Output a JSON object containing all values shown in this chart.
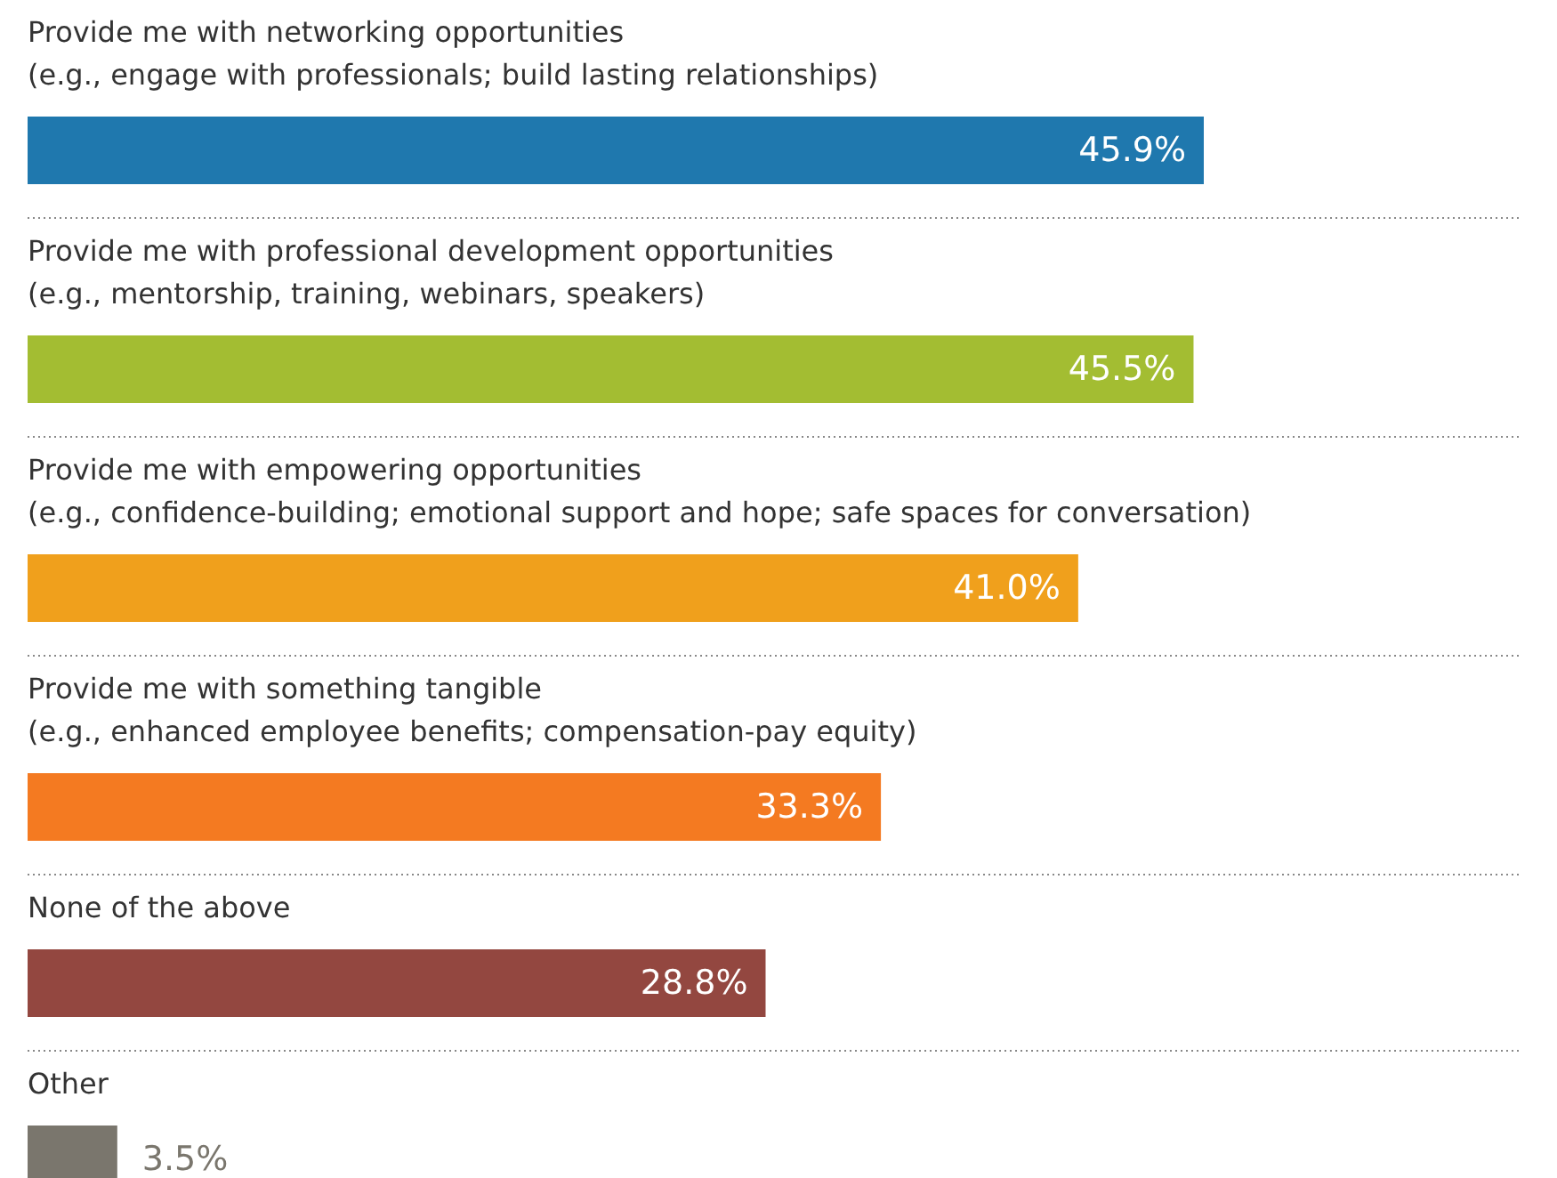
{
  "chart_data": {
    "type": "bar",
    "orientation": "horizontal",
    "categories": [
      "Provide me with networking opportunities\n(e.g., engage with professionals; build lasting relationships)",
      "Provide me with professional development opportunities\n(e.g., mentorship, training, webinars, speakers)",
      "Provide me with empowering opportunities\n(e.g., confidence-building; emotional support and hope; safe spaces for conversation)",
      "Provide me with something tangible\n(e.g., enhanced employee benefits; compensation-pay equity)",
      "None of the above",
      "Other"
    ],
    "values": [
      45.9,
      45.5,
      41.0,
      33.3,
      28.8,
      3.5
    ],
    "colors": [
      "#1f78ae",
      "#a3bd32",
      "#f0a01c",
      "#f47a21",
      "#934740",
      "#7a766d"
    ],
    "value_labels": [
      "45.9%",
      "45.5%",
      "41.0%",
      "33.3%",
      "28.8%",
      "3.5%"
    ]
  }
}
